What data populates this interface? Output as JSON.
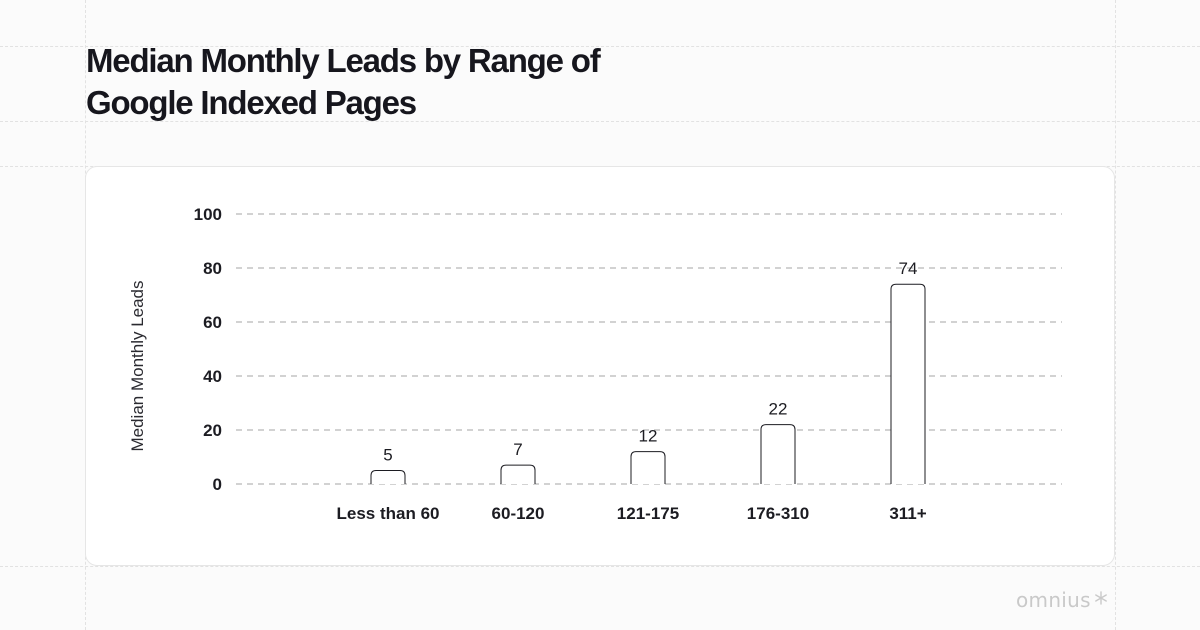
{
  "chart_data": {
    "type": "bar",
    "title": "Median Monthly Leads by Range of Google Indexed Pages",
    "ylabel": "Median Monthly Leads",
    "xlabel": "",
    "categories": [
      "Less than 60",
      "60-120",
      "121-175",
      "176-310",
      "311+"
    ],
    "values": [
      5,
      7,
      12,
      22,
      74
    ],
    "data_labels": [
      "5",
      "7",
      "12",
      "22",
      "74"
    ],
    "yticks": [
      "0",
      "20",
      "40",
      "60",
      "80",
      "100"
    ],
    "ylim": [
      0,
      100
    ],
    "grid": true,
    "legend": "none",
    "colors": {
      "bar_fill": "#ffffff",
      "bar_stroke": "#1c1c22",
      "grid": "#b8b8b8"
    }
  },
  "brand": {
    "logo_text": "omnius",
    "logo_icon": "snowflake-icon"
  }
}
